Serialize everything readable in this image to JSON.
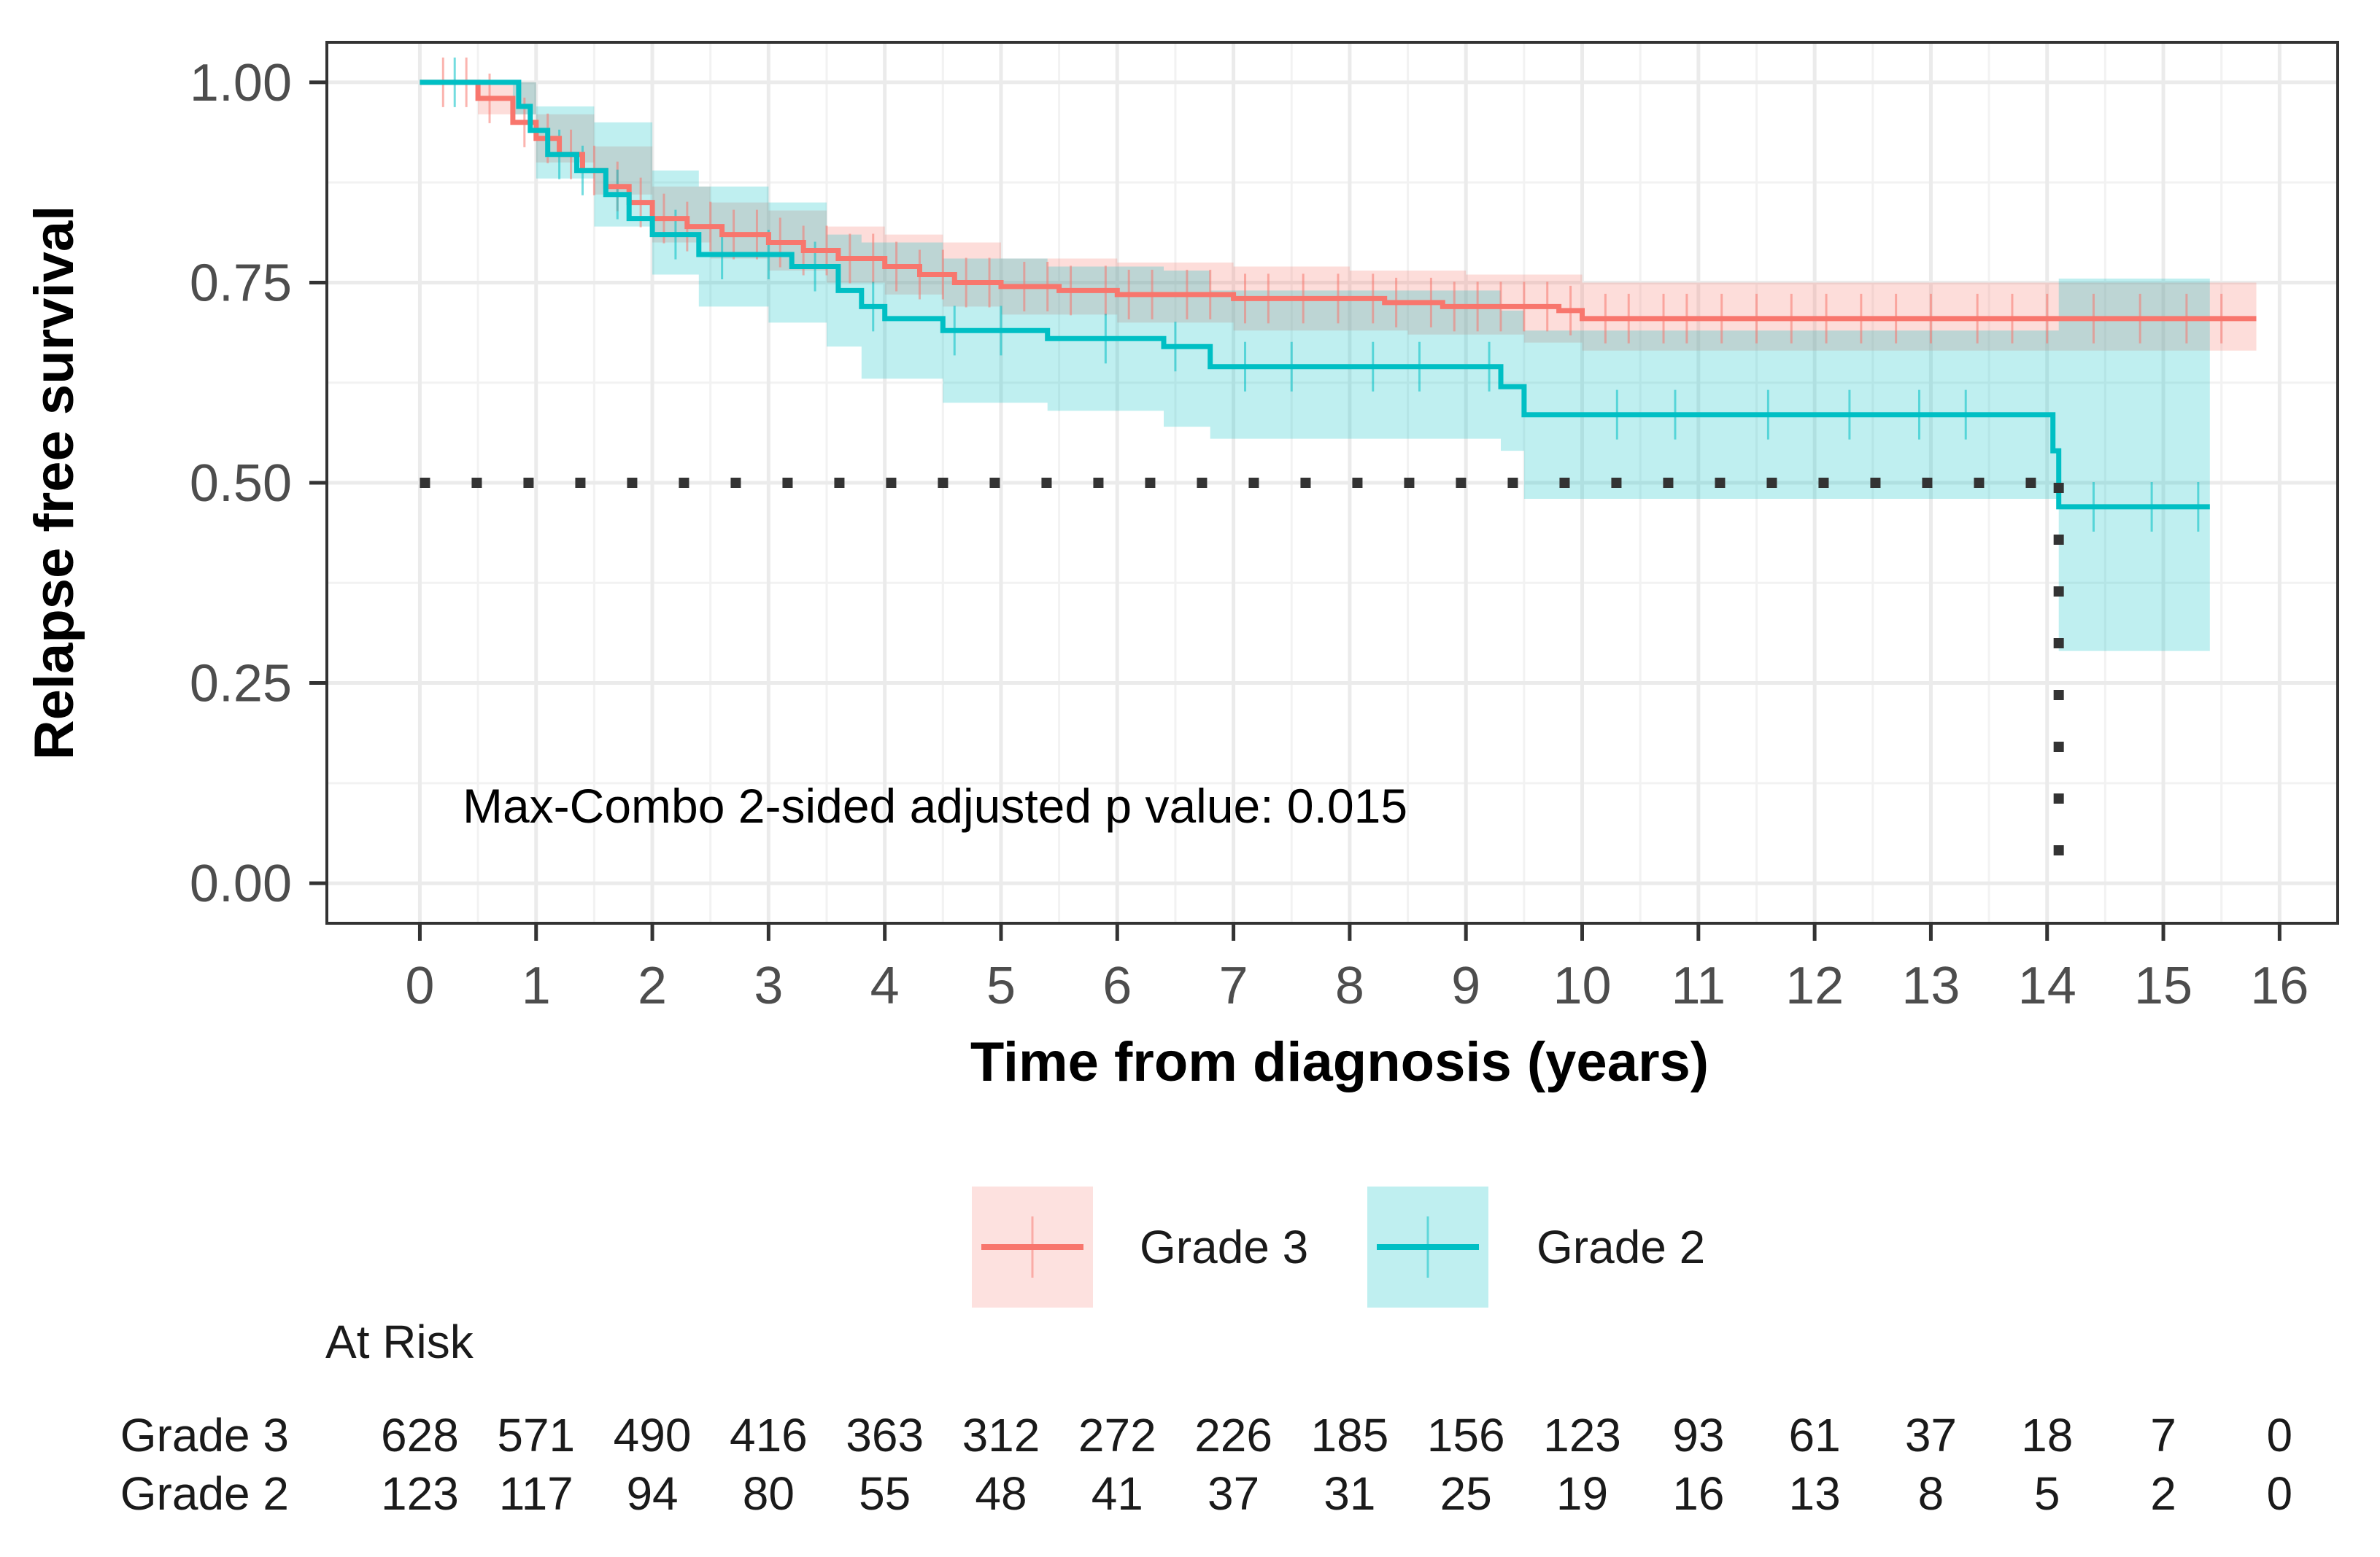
{
  "chart_data": {
    "type": "line",
    "subtype": "kaplan-meier",
    "xlabel": "Time from diagnosis (years)",
    "ylabel": "Relapse free survival",
    "xlim": [
      -0.8,
      16.5
    ],
    "ylim": [
      -0.05,
      1.05
    ],
    "x_ticks": [
      0,
      1,
      2,
      3,
      4,
      5,
      6,
      7,
      8,
      9,
      10,
      11,
      12,
      13,
      14,
      15,
      16
    ],
    "x_tick_labels": [
      "0",
      "1",
      "2",
      "3",
      "4",
      "5",
      "6",
      "7",
      "8",
      "9",
      "10",
      "11",
      "12",
      "13",
      "14",
      "15",
      "16"
    ],
    "y_ticks": [
      0,
      0.25,
      0.5,
      0.75,
      1.0
    ],
    "y_tick_labels": [
      "0.00",
      "0.25",
      "0.50",
      "0.75",
      "1.00"
    ],
    "grid": true,
    "annotation": "Max-Combo 2-sided adjusted p value: 0.015",
    "median_line": {
      "y": 0.5,
      "x_start": 0,
      "x_end": 14.1
    },
    "legend": {
      "position": "bottom",
      "entries": [
        "Grade 3",
        "Grade 2"
      ]
    },
    "series": [
      {
        "name": "Grade 3",
        "color": "#F8766D",
        "fill_color": "#F8766D",
        "steps": [
          [
            0,
            1.0
          ],
          [
            0.5,
            0.98
          ],
          [
            0.8,
            0.95
          ],
          [
            1.0,
            0.93
          ],
          [
            1.2,
            0.91
          ],
          [
            1.4,
            0.89
          ],
          [
            1.6,
            0.87
          ],
          [
            1.8,
            0.85
          ],
          [
            2.0,
            0.83
          ],
          [
            2.3,
            0.82
          ],
          [
            2.6,
            0.81
          ],
          [
            3.0,
            0.8
          ],
          [
            3.3,
            0.79
          ],
          [
            3.6,
            0.78
          ],
          [
            4.0,
            0.77
          ],
          [
            4.3,
            0.76
          ],
          [
            4.6,
            0.75
          ],
          [
            5.0,
            0.745
          ],
          [
            5.5,
            0.74
          ],
          [
            6.0,
            0.735
          ],
          [
            7.0,
            0.73
          ],
          [
            8.3,
            0.725
          ],
          [
            8.8,
            0.72
          ],
          [
            9.8,
            0.715
          ],
          [
            10.0,
            0.705
          ],
          [
            15.8,
            0.705
          ]
        ],
        "ci_lower": [
          [
            0,
            1.0
          ],
          [
            0.5,
            0.96
          ],
          [
            1.0,
            0.9
          ],
          [
            1.5,
            0.86
          ],
          [
            2.0,
            0.8
          ],
          [
            2.5,
            0.78
          ],
          [
            3.0,
            0.765
          ],
          [
            3.5,
            0.75
          ],
          [
            4.0,
            0.735
          ],
          [
            4.5,
            0.72
          ],
          [
            5.0,
            0.71
          ],
          [
            6.0,
            0.7
          ],
          [
            7.0,
            0.69
          ],
          [
            8.5,
            0.685
          ],
          [
            9.5,
            0.675
          ],
          [
            10.0,
            0.665
          ],
          [
            15.8,
            0.665
          ]
        ],
        "ci_upper": [
          [
            0,
            1.0
          ],
          [
            0.5,
            1.0
          ],
          [
            1.0,
            0.96
          ],
          [
            1.5,
            0.92
          ],
          [
            2.0,
            0.87
          ],
          [
            2.5,
            0.85
          ],
          [
            3.0,
            0.84
          ],
          [
            3.5,
            0.82
          ],
          [
            4.0,
            0.81
          ],
          [
            4.5,
            0.8
          ],
          [
            5.0,
            0.78
          ],
          [
            6.0,
            0.775
          ],
          [
            7.0,
            0.77
          ],
          [
            8.0,
            0.765
          ],
          [
            9.0,
            0.76
          ],
          [
            10.0,
            0.75
          ],
          [
            15.8,
            0.75
          ]
        ],
        "censor_times": [
          0.2,
          0.4,
          0.6,
          0.9,
          1.1,
          1.3,
          1.5,
          1.7,
          1.9,
          2.1,
          2.3,
          2.5,
          2.7,
          2.9,
          3.1,
          3.3,
          3.5,
          3.7,
          3.9,
          4.1,
          4.3,
          4.5,
          4.7,
          4.9,
          5.2,
          5.4,
          5.6,
          5.9,
          6.1,
          6.3,
          6.6,
          6.8,
          7.1,
          7.3,
          7.6,
          7.9,
          8.2,
          8.4,
          8.7,
          8.9,
          9.1,
          9.3,
          9.5,
          9.7,
          9.9,
          10.2,
          10.4,
          10.7,
          10.9,
          11.2,
          11.5,
          11.8,
          12.1,
          12.4,
          12.7,
          13.0,
          13.4,
          13.7,
          14.0,
          14.4,
          14.8,
          15.2,
          15.5
        ]
      },
      {
        "name": "Grade 2",
        "color": "#00BFC4",
        "fill_color": "#00BFC4",
        "steps": [
          [
            0,
            1.0
          ],
          [
            0.85,
            0.97
          ],
          [
            0.95,
            0.94
          ],
          [
            1.1,
            0.91
          ],
          [
            1.35,
            0.89
          ],
          [
            1.6,
            0.86
          ],
          [
            1.8,
            0.83
          ],
          [
            2.0,
            0.81
          ],
          [
            2.4,
            0.785
          ],
          [
            3.2,
            0.77
          ],
          [
            3.6,
            0.74
          ],
          [
            3.8,
            0.72
          ],
          [
            4.0,
            0.705
          ],
          [
            4.5,
            0.69
          ],
          [
            5.4,
            0.68
          ],
          [
            6.4,
            0.67
          ],
          [
            6.8,
            0.645
          ],
          [
            9.3,
            0.62
          ],
          [
            9.5,
            0.585
          ],
          [
            14.05,
            0.54
          ],
          [
            14.1,
            0.47
          ],
          [
            15.4,
            0.47
          ]
        ],
        "ci_lower": [
          [
            0,
            1.0
          ],
          [
            0.8,
            0.96
          ],
          [
            1.0,
            0.88
          ],
          [
            1.5,
            0.82
          ],
          [
            2.0,
            0.76
          ],
          [
            2.4,
            0.72
          ],
          [
            3.0,
            0.7
          ],
          [
            3.5,
            0.67
          ],
          [
            3.8,
            0.63
          ],
          [
            4.5,
            0.6
          ],
          [
            5.4,
            0.59
          ],
          [
            6.4,
            0.57
          ],
          [
            6.8,
            0.555
          ],
          [
            9.3,
            0.54
          ],
          [
            9.5,
            0.48
          ],
          [
            14.1,
            0.29
          ],
          [
            15.4,
            0.29
          ]
        ],
        "ci_upper": [
          [
            0,
            1.0
          ],
          [
            0.8,
            1.0
          ],
          [
            1.0,
            0.97
          ],
          [
            1.5,
            0.95
          ],
          [
            2.0,
            0.89
          ],
          [
            2.4,
            0.87
          ],
          [
            3.0,
            0.85
          ],
          [
            3.5,
            0.81
          ],
          [
            3.8,
            0.8
          ],
          [
            4.5,
            0.78
          ],
          [
            5.4,
            0.77
          ],
          [
            6.4,
            0.765
          ],
          [
            6.8,
            0.74
          ],
          [
            9.3,
            0.715
          ],
          [
            9.5,
            0.69
          ],
          [
            14.1,
            0.755
          ],
          [
            15.4,
            0.755
          ]
        ],
        "censor_times": [
          0.3,
          1.2,
          1.4,
          1.7,
          2.2,
          2.6,
          3.0,
          3.4,
          3.9,
          4.6,
          5.0,
          5.9,
          6.5,
          7.1,
          7.5,
          8.2,
          8.6,
          9.2,
          10.3,
          10.8,
          11.6,
          12.3,
          12.9,
          13.3,
          14.4,
          14.9,
          15.3
        ]
      }
    ]
  },
  "at_risk": {
    "title": "At Risk",
    "rows": [
      {
        "label": "Grade 3",
        "values": [
          "628",
          "571",
          "490",
          "416",
          "363",
          "312",
          "272",
          "226",
          "185",
          "156",
          "123",
          "93",
          "61",
          "37",
          "18",
          "7",
          "0"
        ]
      },
      {
        "label": "Grade 2",
        "values": [
          "123",
          "117",
          "94",
          "80",
          "55",
          "48",
          "41",
          "37",
          "31",
          "25",
          "19",
          "16",
          "13",
          "8",
          "5",
          "2",
          "0"
        ]
      }
    ]
  }
}
